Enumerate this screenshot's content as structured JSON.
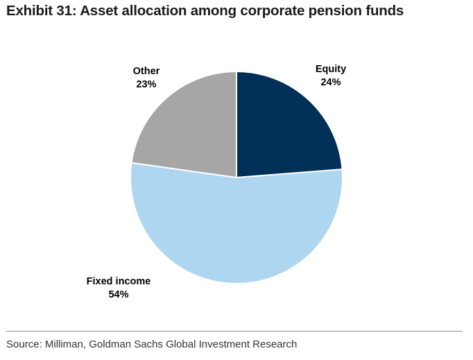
{
  "title": "Exhibit 31: Asset allocation among corporate pension funds",
  "source": "Source: Milliman, Goldman Sachs Global Investment Research",
  "chart_data": {
    "type": "pie",
    "slices": [
      {
        "label": "Equity",
        "value": 24,
        "value_label": "24%",
        "color": "#003057"
      },
      {
        "label": "Fixed income",
        "value": 54,
        "value_label": "54%",
        "color": "#aed6f1"
      },
      {
        "label": "Other",
        "value": 23,
        "value_label": "23%",
        "color": "#a6a6a6"
      }
    ],
    "start": "12 o'clock",
    "direction": "clockwise",
    "legend": "none (labels beside slices)"
  }
}
